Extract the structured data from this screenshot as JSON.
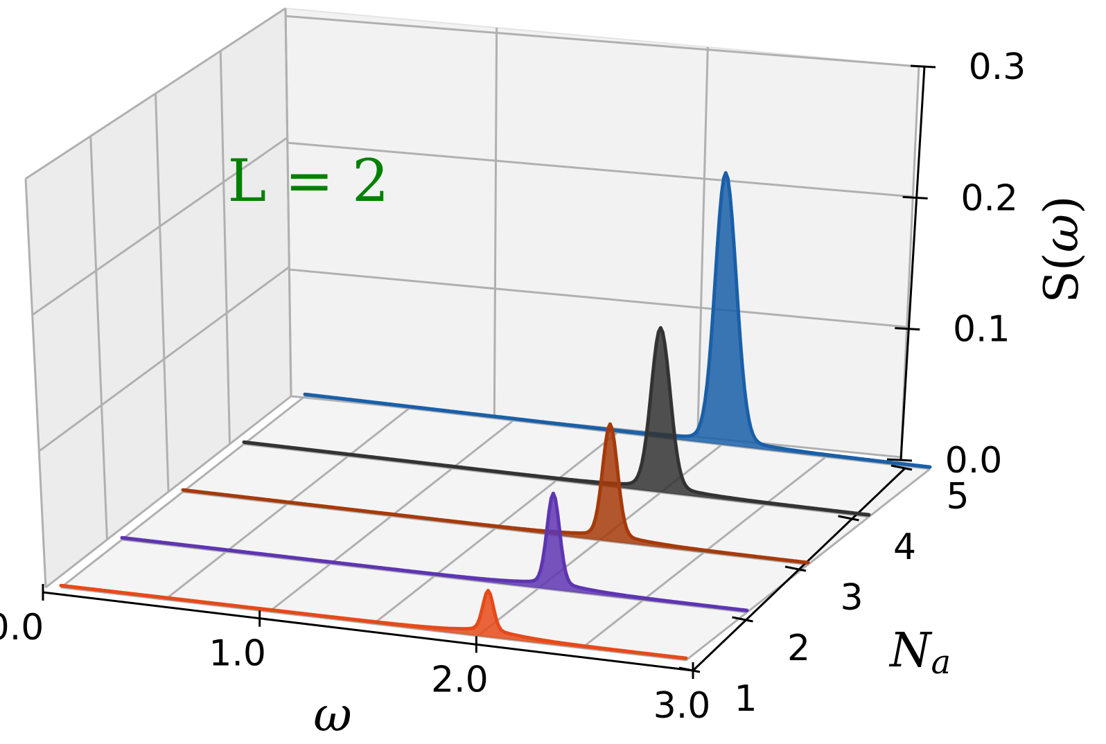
{
  "chart_data": {
    "type": "area",
    "subtype": "3d-waterfall",
    "title": "",
    "annotation": "L = 2",
    "xlabel": "ω",
    "ylabel": "N_a",
    "zlabel": "S(ω)",
    "xlim": [
      0.0,
      3.0
    ],
    "ylim": [
      1,
      5
    ],
    "zlim": [
      0.0,
      0.3
    ],
    "x_ticks": [
      "0.0",
      "1.0",
      "2.0",
      "3.0"
    ],
    "y_ticks": [
      "1",
      "2",
      "3",
      "4",
      "5"
    ],
    "z_ticks": [
      "0.0",
      "0.1",
      "0.2",
      "0.3"
    ],
    "grid": true,
    "series": [
      {
        "na": 1,
        "color": "#e64a19",
        "peak_omega": 2.05,
        "peak_height": 0.028,
        "peak_width": 0.025
      },
      {
        "na": 2,
        "color": "#5e35b1",
        "peak_omega": 2.07,
        "peak_height": 0.066,
        "peak_width": 0.03
      },
      {
        "na": 3,
        "color": "#a63a0a",
        "peak_omega": 2.05,
        "peak_height": 0.082,
        "peak_width": 0.035
      },
      {
        "na": 4,
        "color": "#333333",
        "peak_omega": 2.0,
        "peak_height": 0.118,
        "peak_width": 0.045
      },
      {
        "na": 5,
        "color": "#1a5fa8",
        "peak_omega": 2.02,
        "peak_height": 0.2,
        "peak_width": 0.05
      }
    ]
  }
}
